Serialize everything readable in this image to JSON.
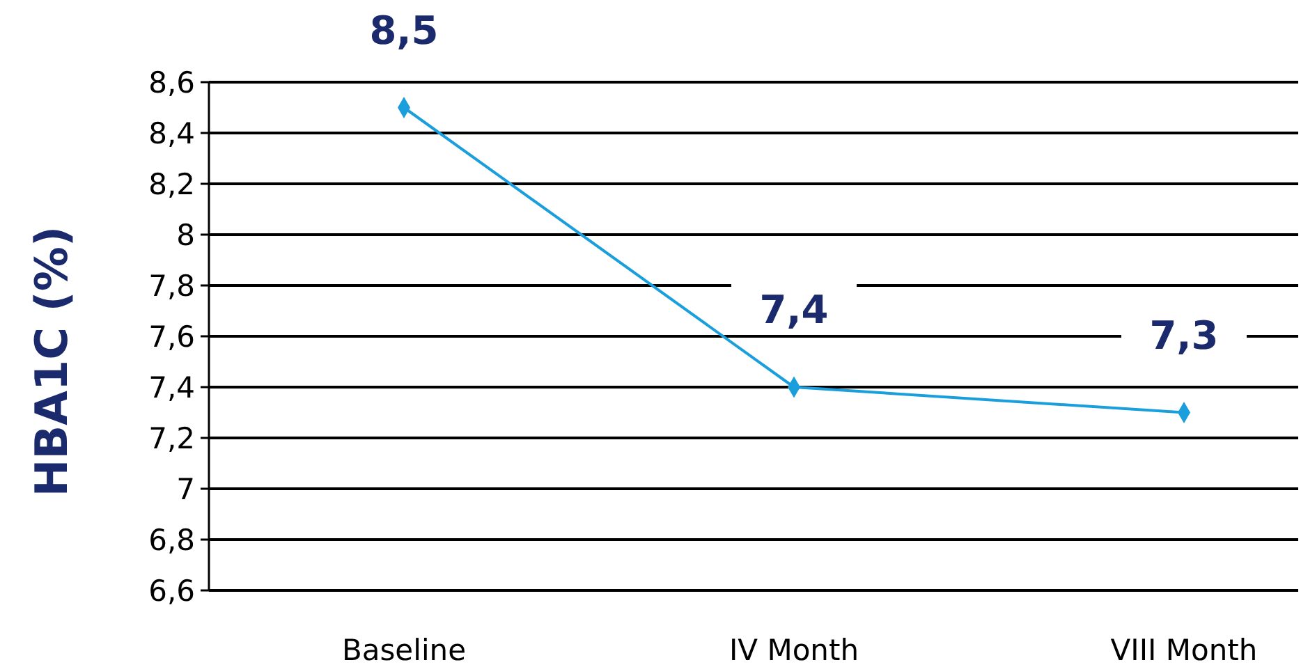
{
  "chart_data": {
    "type": "line",
    "ylabel": "HBA1C (%)",
    "categories": [
      "Baseline",
      "IV Month",
      "VIII Month"
    ],
    "series": [
      {
        "color": "#1a9fdc",
        "values": [
          8.5,
          7.4,
          7.3
        ],
        "value_labels": [
          "8,5",
          "7,4",
          "7,3"
        ]
      }
    ],
    "ylim": [
      6.6,
      8.6
    ],
    "yticks": [
      {
        "value": 6.6,
        "label": "6,6"
      },
      {
        "value": 6.8,
        "label": "6,8"
      },
      {
        "value": 7,
        "label": "7"
      },
      {
        "value": 7.2,
        "label": "7,2"
      },
      {
        "value": 7.4,
        "label": "7,4"
      },
      {
        "value": 7.6,
        "label": "7,6"
      },
      {
        "value": 7.8,
        "label": "7,8"
      },
      {
        "value": 8,
        "label": "8"
      },
      {
        "value": 8.2,
        "label": "8,2"
      },
      {
        "value": 8.4,
        "label": "8,4"
      },
      {
        "value": 8.6,
        "label": "8,6"
      }
    ],
    "grid": "y",
    "marker": "diamond",
    "line_style": "solid"
  }
}
